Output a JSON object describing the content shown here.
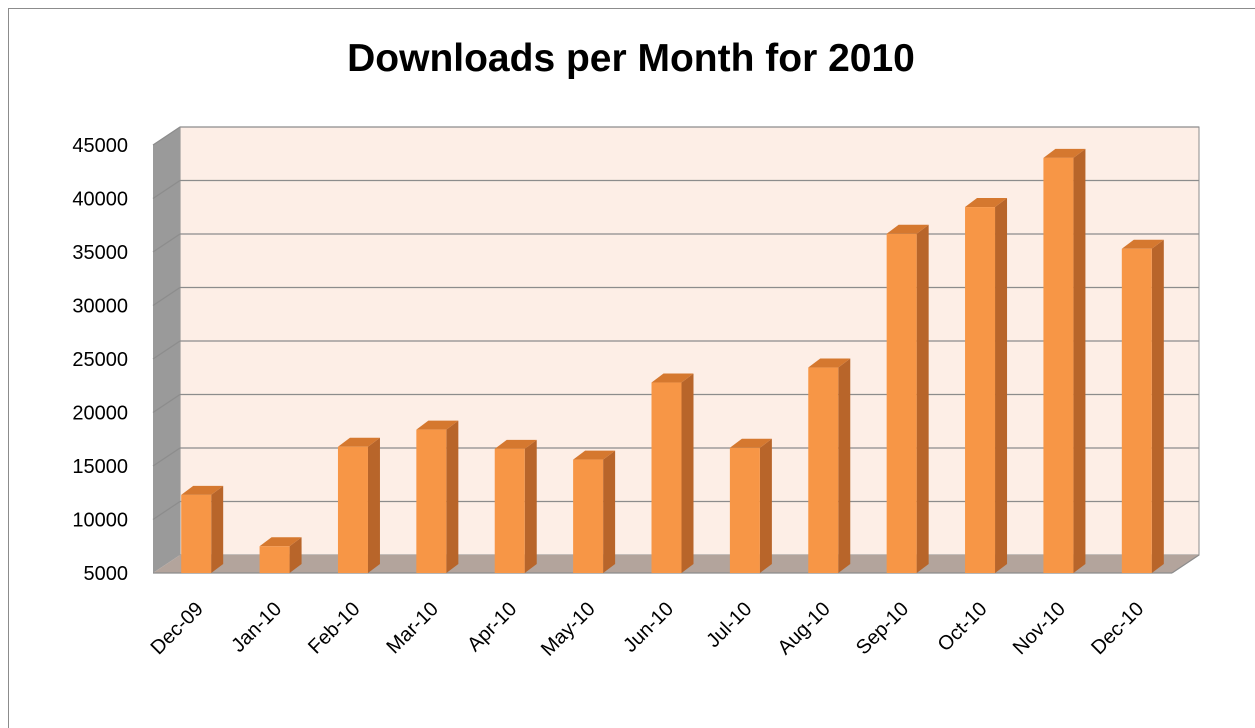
{
  "chart_data": {
    "type": "bar",
    "title": "Downloads per Month for 2010",
    "xlabel": "",
    "ylabel": "",
    "categories": [
      "Dec-09",
      "Jan-10",
      "Feb-10",
      "Mar-10",
      "Apr-10",
      "May-10",
      "Jun-10",
      "Jul-10",
      "Aug-10",
      "Sep-10",
      "Oct-10",
      "Nov-10",
      "Dec-10"
    ],
    "values": [
      12300,
      7500,
      16800,
      18400,
      16600,
      15600,
      22800,
      16700,
      24200,
      36700,
      39200,
      43800,
      35300
    ],
    "ylim": [
      5000,
      45000
    ],
    "yticks": [
      5000,
      10000,
      15000,
      20000,
      25000,
      30000,
      35000,
      40000,
      45000
    ],
    "grid": true,
    "legend": "none",
    "style": "3d",
    "colors": {
      "bar_front": "#f79646",
      "bar_side": "#b8652a",
      "bar_top": "#d5782f",
      "wall": "#fdeee6",
      "floor": "#b3a49c",
      "side_wall": "#9a9a9a",
      "grid": "#8c8c8c"
    }
  }
}
